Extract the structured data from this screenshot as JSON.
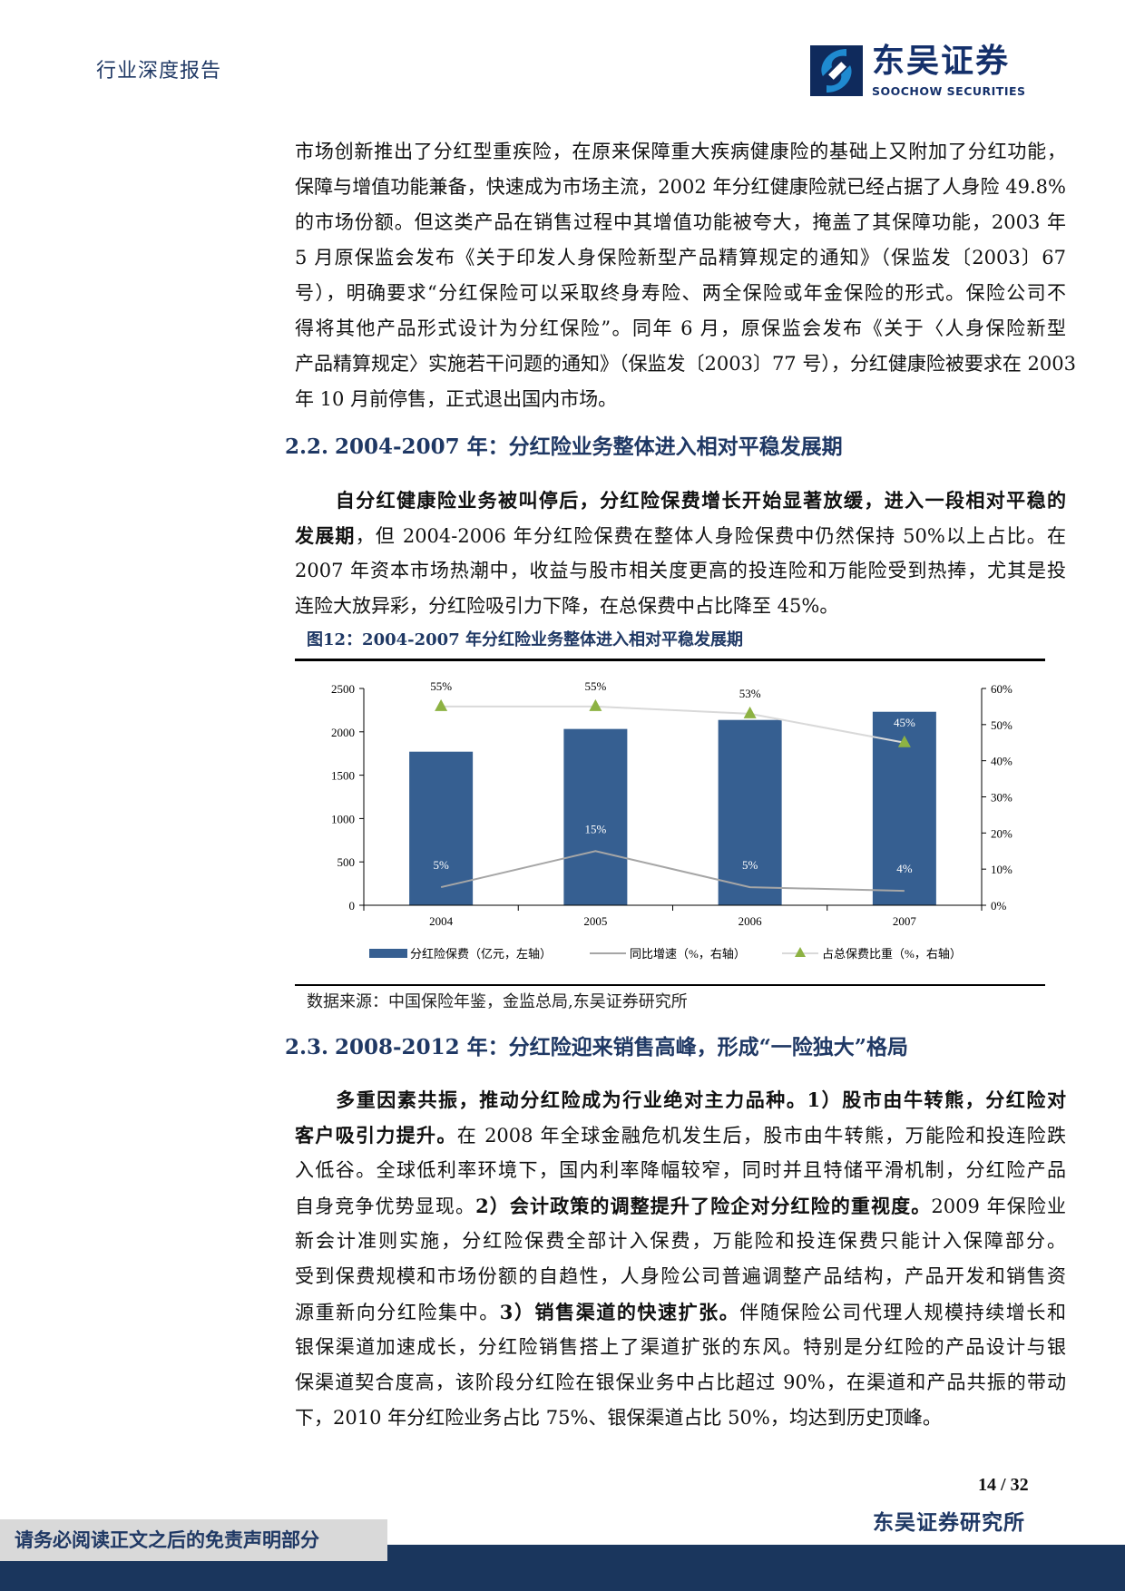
{
  "header": {
    "doc_type": "行业深度报告",
    "logo_cn": "东吴证券",
    "logo_en": "SOOCHOW SECURITIES"
  },
  "para1": [
    [
      {
        "t": "市场创新推出了分红型重疾险，在原来保障重大疾病健康险的基础上又附加了分红功能，",
        "b": false
      }
    ],
    [
      {
        "t": "保障与增值功能兼备，快速成为市场主流，2002 年分红健康险就已经占据了人身险 49.8%",
        "b": false
      }
    ],
    [
      {
        "t": "的市场份额。但这类产品在销售过程中其增值功能被夸大，掩盖了其保障功能，2003 年",
        "b": false
      }
    ],
    [
      {
        "t": "5 月原保监会发布《关于印发人身保险新型产品精算规定的通知》（保监发〔2003〕67",
        "b": false
      }
    ],
    [
      {
        "t": "号），明确要求“分红保险可以采取终身寿险、两全保险或年金保险的形式。保险公司不",
        "b": false
      }
    ],
    [
      {
        "t": "得将其他产品形式设计为分红保险”。同年 6 月，原保监会发布《关于〈人身保险新型",
        "b": false
      }
    ],
    [
      {
        "t": "产品精算规定〉实施若干问题的通知》（保监发〔2003〕77 号），分红健康险被要求在 2003",
        "b": false
      }
    ],
    [
      {
        "t": "年 10 月前停售，正式退出国内市场。",
        "b": false
      }
    ]
  ],
  "section_2_2": {
    "num": "2.2.",
    "title": "2004-2007 年：分红险业务整体进入相对平稳发展期"
  },
  "para2": [
    [
      {
        "t": "　　自分红健康险业务被叫停后，分红险保费增长开始显著放缓，进入一段相对平稳的",
        "b": true
      }
    ],
    [
      {
        "t": "发展期",
        "b": true
      },
      {
        "t": "，但 2004-2006 年分红险保费在整体人身险保费中仍然保持 50%以上占比。在",
        "b": false
      }
    ],
    [
      {
        "t": "2007 年资本市场热潮中，收益与股市相关度更高的投连险和万能险受到热捧，尤其是投",
        "b": false
      }
    ],
    [
      {
        "t": "连险大放异彩，分红险吸引力下降，在总保费中占比降至 45%。",
        "b": false
      }
    ]
  ],
  "figure": {
    "title": "图12：2004-2007 年分红险业务整体进入相对平稳发展期",
    "source": "数据来源：中国保险年鉴，金监总局,东吴证券研究所"
  },
  "chart_data": {
    "type": "bar+line",
    "categories": [
      "2004",
      "2005",
      "2006",
      "2007"
    ],
    "left_axis": {
      "ylim": [
        0,
        2500
      ],
      "ticks": [
        "0",
        "500",
        "1000",
        "1500",
        "2000",
        "2500"
      ]
    },
    "right_axis": {
      "ylim": [
        0,
        60
      ],
      "ticks": [
        "0%",
        "10%",
        "20%",
        "30%",
        "40%",
        "50%",
        "60%"
      ]
    },
    "series": [
      {
        "name": "分红险保费（亿元，左轴）",
        "type": "bar",
        "axis": "left",
        "values": [
          1771,
          2033,
          2137,
          2231
        ],
        "color": "#365f91"
      },
      {
        "name": "同比增速（%，右轴）",
        "type": "line",
        "axis": "right",
        "values": [
          5,
          15,
          5,
          4
        ],
        "labels": [
          "5%",
          "15%",
          "5%",
          "4%"
        ],
        "color": "#a6a6a6"
      },
      {
        "name": "占总保费比重（%，右轴）",
        "type": "line",
        "axis": "right",
        "marker": "triangle",
        "values": [
          55,
          55,
          53,
          45
        ],
        "labels": [
          "55%",
          "55%",
          "53%",
          "45%"
        ],
        "color": "#d9d9d9",
        "marker_color": "#8db243"
      }
    ],
    "legend": "bottom",
    "grid": false
  },
  "section_2_3": {
    "num": "2.3.",
    "title": "2008-2012 年：分红险迎来销售高峰，形成“一险独大”格局"
  },
  "para3": [
    [
      {
        "t": "　　多重因素共振，推动分红险成为行业绝对主力品种。1）股市由牛转熊，分红险对",
        "b": true
      }
    ],
    [
      {
        "t": "客户吸引力提升。",
        "b": true
      },
      {
        "t": "在 2008 年全球金融危机发生后，股市由牛转熊，万能险和投连险跌",
        "b": false
      }
    ],
    [
      {
        "t": "入低谷。全球低利率环境下，国内利率降幅较窄，同时并且特储平滑机制，分红险产品",
        "b": false
      }
    ],
    [
      {
        "t": "自身竞争优势显现。",
        "b": false
      },
      {
        "t": "2）会计政策的调整提升了险企对分红险的重视度。",
        "b": true
      },
      {
        "t": "2009 年保险业",
        "b": false
      }
    ],
    [
      {
        "t": "新会计准则实施，分红险保费全部计入保费，万能险和投连保费只能计入保障部分。",
        "b": false
      }
    ],
    [
      {
        "t": "受到保费规模和市场份额的自趋性，人身险公司普遍调整产品结构，产品开发和销售资",
        "b": false
      }
    ],
    [
      {
        "t": "源重新向分红险集中。",
        "b": false
      },
      {
        "t": "3）销售渠道的快速扩张。",
        "b": true
      },
      {
        "t": "伴随保险公司代理人规模持续增长和",
        "b": false
      }
    ],
    [
      {
        "t": "银保渠道加速成长，分红险销售搭上了渠道扩张的东风。特别是分红险的产品设计与银",
        "b": false
      }
    ],
    [
      {
        "t": "保渠道契合度高，该阶段分红险在银保业务中占比超过 90%，在渠道和产品共振的带动",
        "b": false
      }
    ],
    [
      {
        "t": "下，2010 年分红险业务占比 75%、银保渠道占比 50%，均达到历史顶峰。",
        "b": false
      }
    ]
  ],
  "footer": {
    "page": "14",
    "page_sep": "/",
    "total": "32",
    "org": "东吴证券研究所",
    "disclaimer": "请务必阅读正文之后的免责声明部分"
  }
}
